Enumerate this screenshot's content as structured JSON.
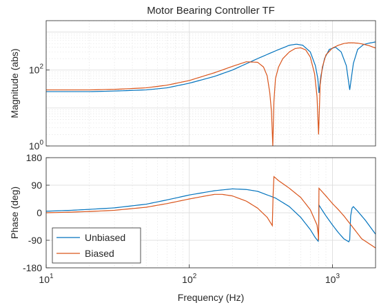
{
  "chart_data": [
    {
      "type": "line",
      "title": "Motor Bearing Controller TF",
      "xlabel": "",
      "ylabel": "Magnitude (abs)",
      "xscale": "log",
      "yscale": "log",
      "xlim": [
        10,
        2000
      ],
      "ylim": [
        1,
        2000
      ],
      "grid": "on (major and minor)",
      "x_tick_labels": [],
      "y_ticks": [
        {
          "label_base": "10",
          "label_exp": "0",
          "value": 1
        },
        {
          "label_base": "10",
          "label_exp": "2",
          "value": 100
        }
      ],
      "series": [
        {
          "name": "Unbiased",
          "color": "#0072BD",
          "x": [
            10,
            20,
            30,
            50,
            70,
            100,
            150,
            200,
            300,
            400,
            500,
            560,
            620,
            700,
            760,
            790,
            805,
            830,
            880,
            950,
            1050,
            1150,
            1250,
            1320,
            1400,
            1500,
            1650,
            1800,
            2000
          ],
          "y": [
            27,
            27,
            28,
            30,
            34,
            45,
            68,
            100,
            200,
            320,
            450,
            480,
            450,
            300,
            130,
            60,
            25,
            70,
            200,
            350,
            400,
            300,
            130,
            30,
            150,
            350,
            470,
            510,
            550
          ]
        },
        {
          "name": "Biased",
          "color": "#D95319",
          "x": [
            10,
            20,
            30,
            50,
            70,
            100,
            150,
            200,
            250,
            300,
            330,
            350,
            365,
            375,
            383,
            390,
            400,
            420,
            450,
            500,
            550,
            600,
            650,
            700,
            750,
            780,
            800,
            820,
            850,
            900,
            1000,
            1100,
            1200,
            1300,
            1400,
            1500,
            1600,
            1800,
            2000
          ],
          "y": [
            30,
            30,
            31,
            34,
            40,
            53,
            85,
            125,
            165,
            160,
            120,
            70,
            25,
            8,
            1,
            15,
            60,
            120,
            200,
            300,
            370,
            385,
            340,
            220,
            80,
            20,
            2,
            40,
            120,
            250,
            380,
            450,
            500,
            520,
            520,
            510,
            490,
            440,
            380
          ]
        }
      ]
    },
    {
      "type": "line",
      "title": "",
      "xlabel": "Frequency  (Hz)",
      "ylabel": "Phase (deg)",
      "xscale": "log",
      "xlim": [
        10,
        2000
      ],
      "ylim": [
        -180,
        180
      ],
      "grid": "on (major and minor)",
      "x_ticks": [
        {
          "label_base": "10",
          "label_exp": "1",
          "value": 10
        },
        {
          "label_base": "10",
          "label_exp": "2",
          "value": 100
        },
        {
          "label_base": "10",
          "label_exp": "3",
          "value": 1000
        }
      ],
      "y_ticks": [
        "180",
        "90",
        "0",
        "-90",
        "-180"
      ],
      "legend_location": "bottom-left",
      "series": [
        {
          "name": "Unbiased",
          "color": "#0072BD",
          "x": [
            10,
            15,
            20,
            30,
            50,
            70,
            100,
            150,
            200,
            250,
            300,
            400,
            500,
            600,
            700,
            760,
            795,
            800,
            805,
            830,
            900,
            1000,
            1100,
            1200,
            1300,
            1320,
            1340,
            1370,
            1400,
            1500,
            1700,
            2000
          ],
          "y": [
            5,
            8,
            11,
            16,
            28,
            42,
            58,
            72,
            78,
            76,
            70,
            48,
            20,
            -15,
            -55,
            -82,
            -93,
            -70,
            25,
            15,
            -10,
            -40,
            -65,
            -85,
            -95,
            -88,
            -10,
            15,
            20,
            5,
            -25,
            -70
          ]
        },
        {
          "name": "Biased",
          "color": "#D95319",
          "x": [
            10,
            15,
            20,
            30,
            50,
            70,
            100,
            130,
            150,
            170,
            200,
            250,
            300,
            350,
            380,
            385,
            390,
            420,
            500,
            600,
            700,
            780,
            795,
            800,
            805,
            850,
            900,
            1000,
            1100,
            1200,
            1400,
            1600,
            2000
          ],
          "y": [
            0,
            2,
            4,
            8,
            18,
            30,
            45,
            55,
            60,
            60,
            55,
            38,
            15,
            -15,
            -42,
            60,
            118,
            105,
            80,
            50,
            10,
            -40,
            -70,
            -90,
            80,
            68,
            55,
            30,
            10,
            -10,
            -50,
            -85,
            -115
          ]
        }
      ]
    }
  ],
  "colors": {
    "unbiased": "#0072BD",
    "biased": "#D95319",
    "axes": "#262626",
    "grid": "#d9d9d9"
  }
}
